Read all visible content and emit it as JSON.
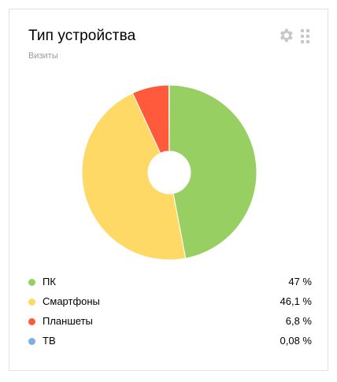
{
  "widget": {
    "title": "Тип устройства",
    "subtitle": "Визиты",
    "settings_icon": "gear-icon",
    "drag_icon": "drag-handle-icon"
  },
  "chart_data": {
    "type": "pie",
    "title": "Тип устройства",
    "subtitle": "Визиты",
    "donut": true,
    "categories": [
      "ПК",
      "Смартфоны",
      "Планшеты",
      "ТВ"
    ],
    "values": [
      47,
      46.1,
      6.8,
      0.08
    ],
    "value_labels": [
      "47 %",
      "46,1 %",
      "6,8 %",
      "0,08 %"
    ],
    "colors": [
      "#97cf63",
      "#ffd966",
      "#ff5a3c",
      "#7bb1e0"
    ],
    "legend_placement": "bottom"
  }
}
